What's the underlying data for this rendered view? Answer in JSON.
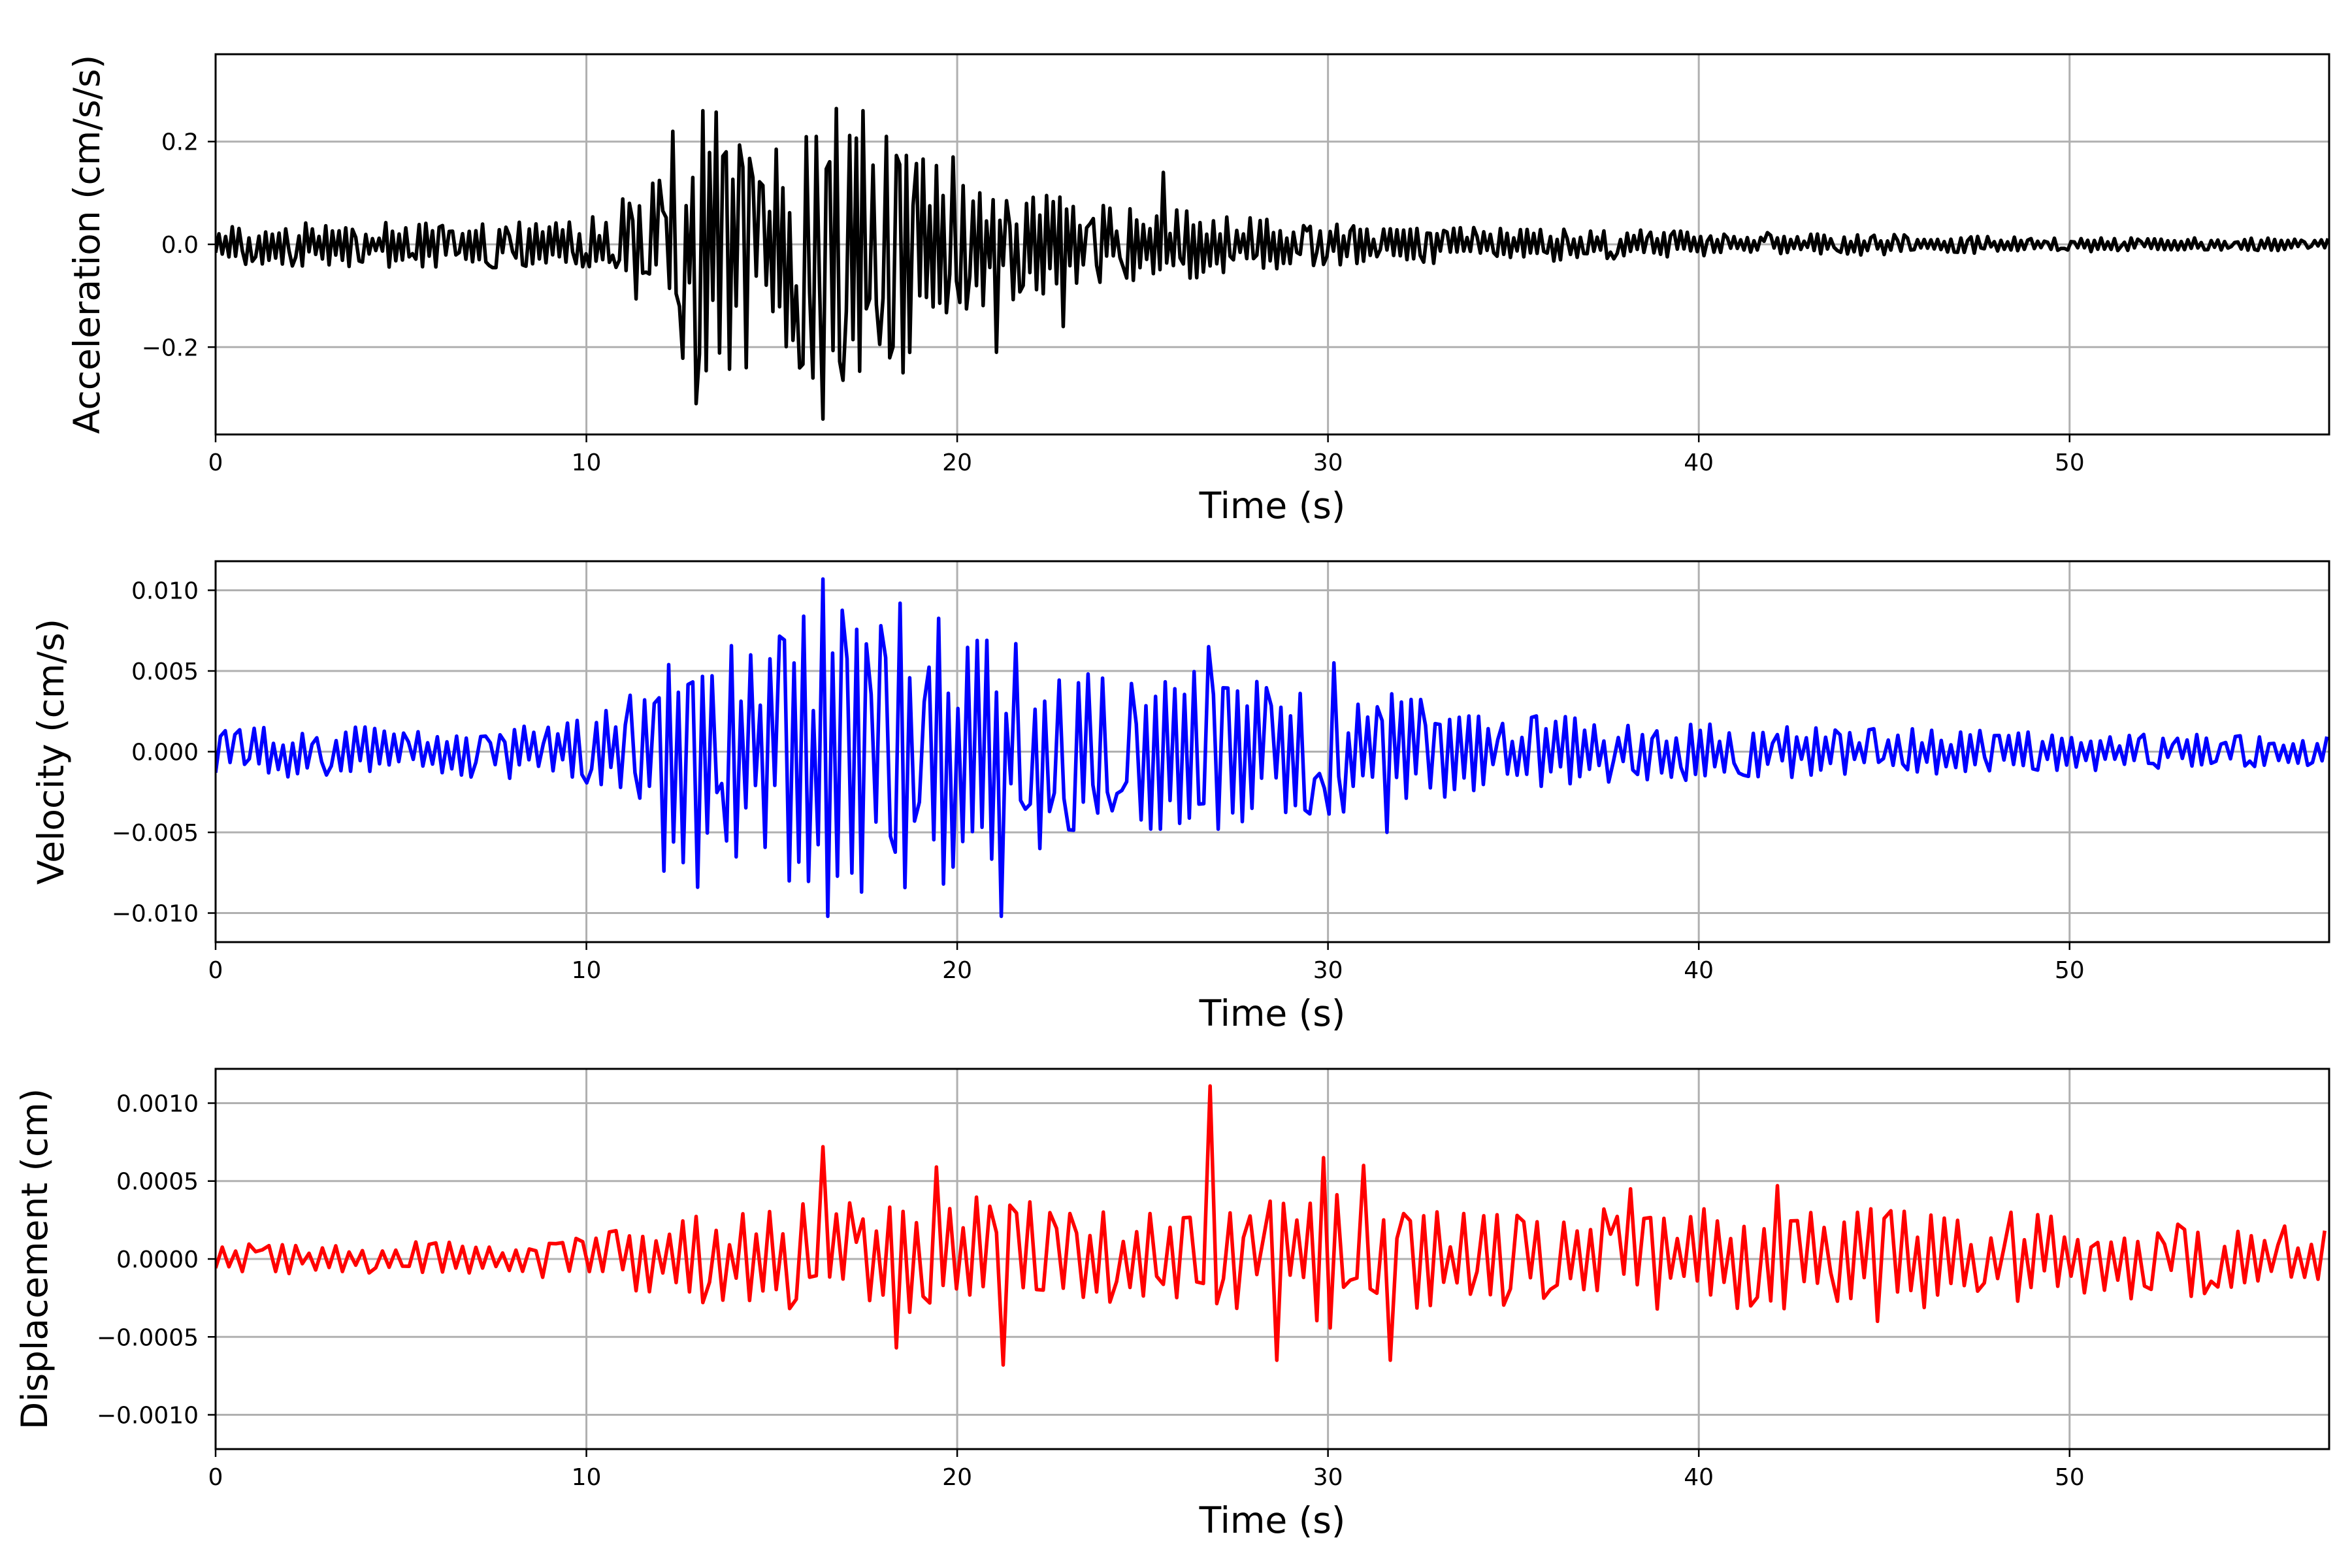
{
  "chart_data": [
    {
      "type": "line",
      "xlabel": "Time (s)",
      "ylabel": "Acceleration (cm/s/s)",
      "xlim": [
        0,
        57
      ],
      "ylim": [
        -0.37,
        0.37
      ],
      "xticks": [
        0,
        10,
        20,
        30,
        40,
        50
      ],
      "xtick_labels": [
        "0",
        "10",
        "20",
        "30",
        "40",
        "50"
      ],
      "yticks": [
        -0.2,
        0.0,
        0.2
      ],
      "ytick_labels": [
        "−0.2",
        "0.0",
        "0.2"
      ],
      "grid": true,
      "color": "#000000",
      "envelope": [
        [
          0,
          0.04
        ],
        [
          10,
          0.05
        ],
        [
          11.5,
          0.12
        ],
        [
          12.5,
          0.22
        ],
        [
          13.5,
          0.26
        ],
        [
          15,
          0.22
        ],
        [
          16.5,
          0.28
        ],
        [
          18,
          0.25
        ],
        [
          20,
          0.14
        ],
        [
          22,
          0.1
        ],
        [
          24,
          0.08
        ],
        [
          26,
          0.07
        ],
        [
          30,
          0.04
        ],
        [
          35,
          0.035
        ],
        [
          40,
          0.025
        ],
        [
          45,
          0.02
        ],
        [
          50,
          0.015
        ],
        [
          57,
          0.012
        ]
      ],
      "extremes": [
        [
          12.3,
          0.22
        ],
        [
          13.0,
          -0.31
        ],
        [
          13.1,
          0.26
        ],
        [
          14.3,
          -0.24
        ],
        [
          16.4,
          -0.34
        ],
        [
          16.2,
          0.21
        ],
        [
          17.5,
          0.26
        ],
        [
          18.1,
          0.21
        ],
        [
          18.5,
          -0.25
        ],
        [
          19.9,
          0.17
        ],
        [
          21.1,
          -0.21
        ],
        [
          25.6,
          0.14
        ],
        [
          22.9,
          -0.16
        ]
      ]
    },
    {
      "type": "line",
      "xlabel": "Time (s)",
      "ylabel": "Velocity (cm/s)",
      "xlim": [
        0,
        57
      ],
      "ylim": [
        -0.0118,
        0.0118
      ],
      "xticks": [
        0,
        10,
        20,
        30,
        40,
        50
      ],
      "xtick_labels": [
        "0",
        "10",
        "20",
        "30",
        "40",
        "50"
      ],
      "yticks": [
        -0.01,
        -0.005,
        0.0,
        0.005,
        0.01
      ],
      "ytick_labels": [
        "−0.010",
        "−0.005",
        "0.000",
        "0.005",
        "0.010"
      ],
      "grid": true,
      "color": "#0000ff",
      "envelope": [
        [
          0,
          0.0015
        ],
        [
          9.5,
          0.0018
        ],
        [
          11,
          0.003
        ],
        [
          12,
          0.006
        ],
        [
          13,
          0.0075
        ],
        [
          14.5,
          0.0075
        ],
        [
          16.5,
          0.0095
        ],
        [
          18.5,
          0.0085
        ],
        [
          21,
          0.0085
        ],
        [
          23,
          0.005
        ],
        [
          27,
          0.005
        ],
        [
          31,
          0.004
        ],
        [
          34,
          0.0025
        ],
        [
          40,
          0.0018
        ],
        [
          50,
          0.0012
        ],
        [
          57,
          0.001
        ]
      ],
      "extremes": [
        [
          16.4,
          0.0107
        ],
        [
          16.5,
          -0.0102
        ],
        [
          21.2,
          -0.0102
        ],
        [
          18.4,
          0.0092
        ],
        [
          17.4,
          -0.0087
        ],
        [
          13.0,
          -0.0084
        ],
        [
          19.6,
          -0.0082
        ],
        [
          26.8,
          0.0065
        ],
        [
          30.1,
          0.0055
        ],
        [
          31.6,
          -0.005
        ],
        [
          27.1,
          -0.0048
        ],
        [
          12.1,
          -0.0074
        ]
      ]
    },
    {
      "type": "line",
      "xlabel": "Time (s)",
      "ylabel": "Displacement (cm)",
      "xlim": [
        0,
        57
      ],
      "ylim": [
        -0.00122,
        0.00122
      ],
      "xticks": [
        0,
        10,
        20,
        30,
        40,
        50
      ],
      "xtick_labels": [
        "0",
        "10",
        "20",
        "30",
        "40",
        "50"
      ],
      "yticks": [
        -0.001,
        -0.0005,
        0.0,
        0.0005,
        0.001
      ],
      "ytick_labels": [
        "−0.0010",
        "−0.0005",
        "0.0000",
        "0.0005",
        "0.0010"
      ],
      "grid": true,
      "color": "#ff0000",
      "envelope": [
        [
          0,
          0.0001
        ],
        [
          9,
          0.00012
        ],
        [
          12,
          0.0003
        ],
        [
          15,
          0.00035
        ],
        [
          18,
          0.0004
        ],
        [
          21,
          0.0004
        ],
        [
          25,
          0.0003
        ],
        [
          27,
          0.0003
        ],
        [
          30,
          0.00045
        ],
        [
          33,
          0.0003
        ],
        [
          40,
          0.00035
        ],
        [
          45,
          0.00035
        ],
        [
          50,
          0.00028
        ],
        [
          57,
          0.0002
        ]
      ],
      "extremes": [
        [
          26.8,
          0.00111
        ],
        [
          16.4,
          0.00072
        ],
        [
          19.5,
          0.00059
        ],
        [
          21.2,
          -0.00068
        ],
        [
          28.6,
          -0.00065
        ],
        [
          29.8,
          0.00065
        ],
        [
          30.9,
          0.0006
        ],
        [
          31.7,
          -0.00065
        ],
        [
          18.3,
          -0.00057
        ],
        [
          42.1,
          0.00047
        ],
        [
          38.1,
          0.00045
        ],
        [
          44.9,
          -0.0004
        ]
      ]
    }
  ]
}
